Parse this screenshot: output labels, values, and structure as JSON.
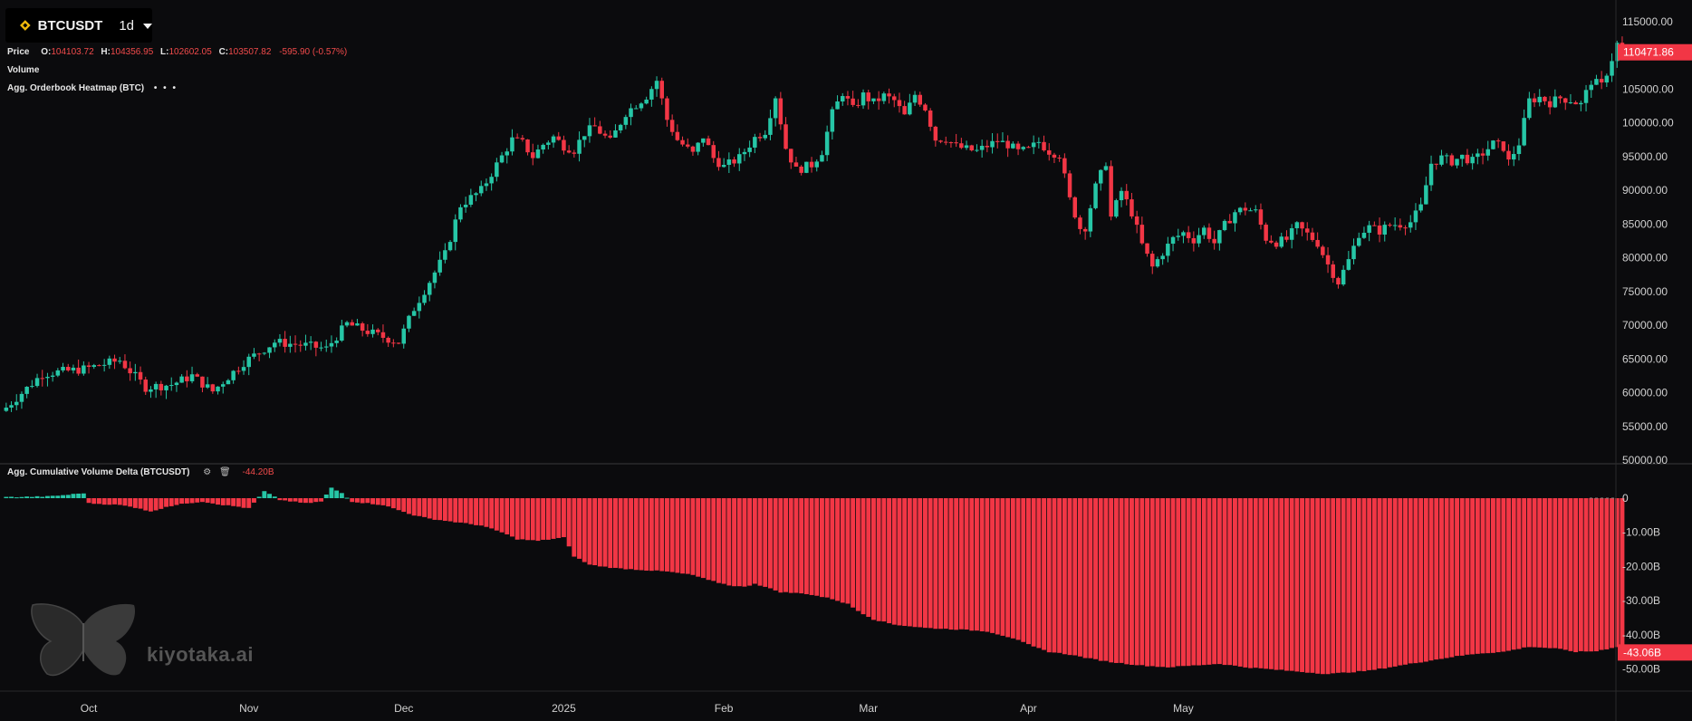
{
  "header": {
    "symbol": "BTCUSDT",
    "timeframe": "1d",
    "price_label": "Price",
    "ohlc": [
      {
        "key": "O:",
        "value": "104103.72"
      },
      {
        "key": "H:",
        "value": "104356.95"
      },
      {
        "key": "L:",
        "value": "102602.05"
      },
      {
        "key": "C:",
        "value": "103507.82"
      }
    ],
    "change": "-595.90 (-0.57%)",
    "volume_label": "Volume",
    "heatmap_label": "Agg. Orderbook Heatmap (BTC)",
    "more_dots": "• • •",
    "cvd_label": "Agg. Cumulative Volume Delta (BTCUSDT)",
    "cvd_value": "-44.20B"
  },
  "watermark": {
    "text": "kiyotaka.ai"
  },
  "colors": {
    "up": "#26c6a6",
    "down": "#f23645",
    "background": "#0b0b0d",
    "axis_text": "#d0d0d0",
    "separator": "#3a3a3a"
  },
  "chart_data": [
    {
      "type": "candlestick",
      "title": "BTCUSDT",
      "x_tick_labels": [
        "Oct",
        "Nov",
        "Dec",
        "2025",
        "Feb",
        "Mar",
        "Apr",
        "May"
      ],
      "y_tick_labels": [
        "115000.00",
        "110000.00",
        "105000.00",
        "100000.00",
        "95000.00",
        "90000.00",
        "85000.00",
        "80000.00",
        "75000.00",
        "70000.00",
        "65000.00",
        "60000.00",
        "55000.00",
        "50000.00"
      ],
      "ylim": [
        50000,
        115000
      ],
      "last_price_label": "110471.86",
      "close_path": [
        [
          0,
          57800
        ],
        [
          7,
          62800
        ],
        [
          15,
          63500
        ],
        [
          22,
          64800
        ],
        [
          27,
          60800
        ],
        [
          32,
          61200
        ],
        [
          36,
          62500
        ],
        [
          40,
          60200
        ],
        [
          46,
          64500
        ],
        [
          52,
          67500
        ],
        [
          58,
          67000
        ],
        [
          62,
          66500
        ],
        [
          66,
          70200
        ],
        [
          72,
          68500
        ],
        [
          76,
          67500
        ],
        [
          79,
          72500
        ],
        [
          82,
          76500
        ],
        [
          85,
          80500
        ],
        [
          88,
          87800
        ],
        [
          92,
          90000
        ],
        [
          95,
          93800
        ],
        [
          98,
          97500
        ],
        [
          100,
          97000
        ],
        [
          102,
          95000
        ],
        [
          104,
          96800
        ],
        [
          106,
          97900
        ],
        [
          108,
          96600
        ],
        [
          110,
          96000
        ],
        [
          112,
          98500
        ],
        [
          114,
          99400
        ],
        [
          117,
          97200
        ],
        [
          120,
          101500
        ],
        [
          124,
          104000
        ],
        [
          126,
          106300
        ],
        [
          128,
          100500
        ],
        [
          130,
          97500
        ],
        [
          133,
          95400
        ],
        [
          135,
          98000
        ],
        [
          137,
          94800
        ],
        [
          139,
          93500
        ],
        [
          142,
          94800
        ],
        [
          145,
          97800
        ],
        [
          147,
          98800
        ],
        [
          149,
          104000
        ],
        [
          151,
          96300
        ],
        [
          153,
          93000
        ],
        [
          156,
          93800
        ],
        [
          158,
          95800
        ],
        [
          160,
          101400
        ],
        [
          162,
          104500
        ],
        [
          164,
          102000
        ],
        [
          166,
          104100
        ],
        [
          168,
          103000
        ],
        [
          170,
          104000
        ],
        [
          172,
          103300
        ],
        [
          174,
          101000
        ],
        [
          176,
          104200
        ],
        [
          178,
          102200
        ],
        [
          180,
          97600
        ],
        [
          182,
          97700
        ],
        [
          184,
          96500
        ],
        [
          186,
          96100
        ],
        [
          188,
          95800
        ],
        [
          190,
          96600
        ],
        [
          192,
          97300
        ],
        [
          194,
          96800
        ],
        [
          196,
          95700
        ],
        [
          198,
          96000
        ],
        [
          200,
          97200
        ],
        [
          202,
          95800
        ],
        [
          204,
          95300
        ],
        [
          206,
          88600
        ],
        [
          208,
          84400
        ],
        [
          209,
          84600
        ],
        [
          211,
          90500
        ],
        [
          213,
          94200
        ],
        [
          214,
          86000
        ],
        [
          216,
          89900
        ],
        [
          218,
          86700
        ],
        [
          220,
          81900
        ],
        [
          222,
          78600
        ],
        [
          224,
          80800
        ],
        [
          226,
          82800
        ],
        [
          228,
          83700
        ],
        [
          230,
          82700
        ],
        [
          232,
          84300
        ],
        [
          234,
          82200
        ],
        [
          236,
          84800
        ],
        [
          238,
          86800
        ],
        [
          240,
          87300
        ],
        [
          242,
          86800
        ],
        [
          244,
          82900
        ],
        [
          246,
          82300
        ],
        [
          248,
          82700
        ],
        [
          250,
          84700
        ],
        [
          252,
          83500
        ],
        [
          254,
          82200
        ],
        [
          256,
          79000
        ],
        [
          258,
          76400
        ],
        [
          260,
          79600
        ],
        [
          262,
          83600
        ],
        [
          264,
          84500
        ],
        [
          266,
          84000
        ],
        [
          268,
          84900
        ],
        [
          270,
          85000
        ],
        [
          272,
          85300
        ],
        [
          274,
          87500
        ],
        [
          276,
          94000
        ],
        [
          278,
          94800
        ],
        [
          280,
          94300
        ],
        [
          282,
          95000
        ],
        [
          284,
          94300
        ],
        [
          286,
          95500
        ],
        [
          288,
          96900
        ],
        [
          290,
          96400
        ],
        [
          291,
          94200
        ],
        [
          293,
          97000
        ],
        [
          295,
          103300
        ],
        [
          297,
          103800
        ],
        [
          299,
          103000
        ],
        [
          301,
          103700
        ],
        [
          303,
          103400
        ],
        [
          305,
          102700
        ],
        [
          307,
          106200
        ],
        [
          309,
          105500
        ],
        [
          311,
          109500
        ],
        [
          312,
          111700
        ],
        [
          313,
          110471.86
        ]
      ]
    },
    {
      "type": "bar",
      "title": "Agg. Cumulative Volume Delta (BTCUSDT)",
      "y_tick_labels": [
        "0",
        "-10.00B",
        "-20.00B",
        "-30.00B",
        "-40.00B",
        "-50.00B"
      ],
      "ylim": [
        -57,
        1
      ],
      "unit": "B",
      "last_value_label": "-43.06B",
      "path": [
        [
          0,
          0.3
        ],
        [
          8,
          0.5
        ],
        [
          12,
          1.0
        ],
        [
          15,
          1.5
        ],
        [
          16,
          -1.5
        ],
        [
          22,
          -2.0
        ],
        [
          26,
          -3.0
        ],
        [
          28,
          -4.0
        ],
        [
          31,
          -2.5
        ],
        [
          35,
          -1.5
        ],
        [
          38,
          -1.0
        ],
        [
          42,
          -2.0
        ],
        [
          45,
          -2.5
        ],
        [
          47,
          -3.0
        ],
        [
          50,
          2.0
        ],
        [
          53,
          -0.5
        ],
        [
          58,
          -1.5
        ],
        [
          61,
          -1.0
        ],
        [
          63,
          3.0
        ],
        [
          65,
          1.5
        ],
        [
          67,
          -1.0
        ],
        [
          70,
          -1.5
        ],
        [
          73,
          -2.0
        ],
        [
          75,
          -3.0
        ],
        [
          79,
          -5.0
        ],
        [
          82,
          -6.0
        ],
        [
          87,
          -7.0
        ],
        [
          92,
          -8.0
        ],
        [
          96,
          -10.0
        ],
        [
          99,
          -12.0
        ],
        [
          103,
          -12.5
        ],
        [
          108,
          -11.5
        ],
        [
          110,
          -17.0
        ],
        [
          113,
          -19.5
        ],
        [
          118,
          -20.5
        ],
        [
          123,
          -21.0
        ],
        [
          128,
          -21.5
        ],
        [
          133,
          -22.5
        ],
        [
          136,
          -24.0
        ],
        [
          140,
          -25.5
        ],
        [
          143,
          -26.0
        ],
        [
          145,
          -25.0
        ],
        [
          147,
          -26.0
        ],
        [
          150,
          -27.5
        ],
        [
          155,
          -28.0
        ],
        [
          160,
          -29.5
        ],
        [
          163,
          -31.0
        ],
        [
          165,
          -33.0
        ],
        [
          168,
          -35.5
        ],
        [
          172,
          -37.0
        ],
        [
          178,
          -38.0
        ],
        [
          185,
          -38.5
        ],
        [
          190,
          -39.0
        ],
        [
          195,
          -41.0
        ],
        [
          199,
          -43.5
        ],
        [
          202,
          -45.0
        ],
        [
          206,
          -45.8
        ],
        [
          210,
          -47.0
        ],
        [
          214,
          -48.0
        ],
        [
          220,
          -49.0
        ],
        [
          225,
          -49.5
        ],
        [
          230,
          -49.0
        ],
        [
          235,
          -48.5
        ],
        [
          240,
          -49.5
        ],
        [
          244,
          -50.0
        ],
        [
          248,
          -50.5
        ],
        [
          252,
          -51.0
        ],
        [
          256,
          -51.5
        ],
        [
          260,
          -51.0
        ],
        [
          264,
          -50.5
        ],
        [
          268,
          -49.5
        ],
        [
          272,
          -48.5
        ],
        [
          276,
          -47.5
        ],
        [
          280,
          -46.5
        ],
        [
          285,
          -45.5
        ],
        [
          290,
          -45.0
        ],
        [
          295,
          -43.5
        ],
        [
          300,
          -44.0
        ],
        [
          304,
          -45.0
        ],
        [
          308,
          -44.8
        ],
        [
          312,
          -43.5
        ],
        [
          313,
          -43.06
        ]
      ]
    }
  ]
}
